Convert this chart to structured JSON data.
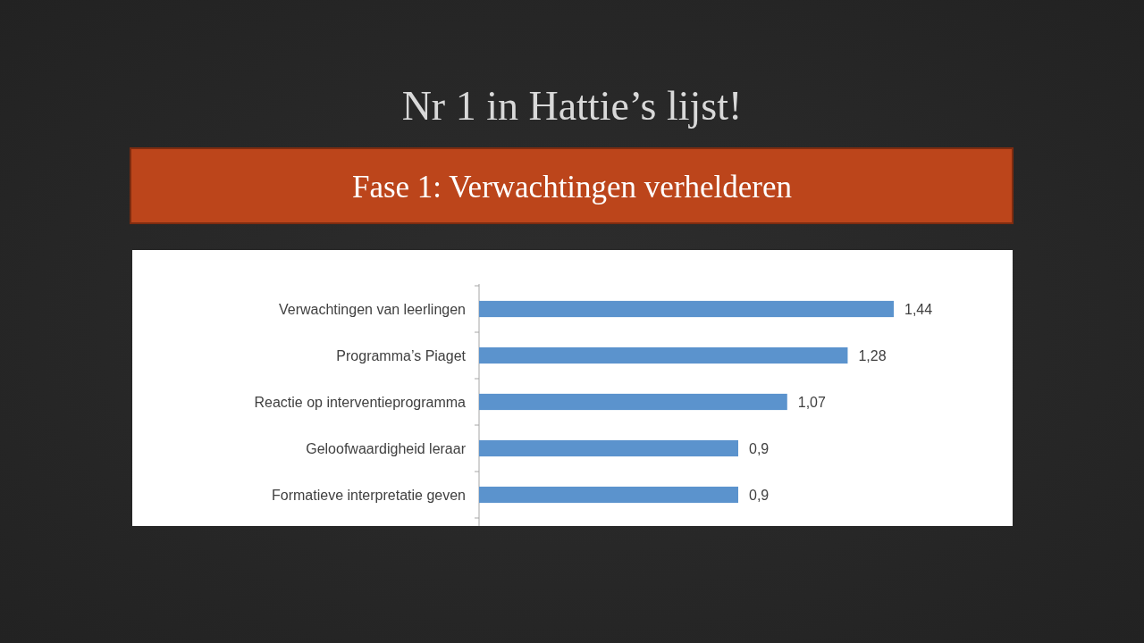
{
  "chart_data": {
    "type": "bar",
    "orientation": "horizontal",
    "title": "Nr 1 in Hattie’s lijst!",
    "subtitle": "Fase 1: Verwachtingen verhelderen",
    "categories": [
      "Verwachtingen van leerlingen",
      "Programma’s Piaget",
      "Reactie op interventieprogramma",
      "Geloofwaardigheid leraar",
      "Formatieve interpretatie geven"
    ],
    "values": [
      1.44,
      1.28,
      1.07,
      0.9,
      0.9
    ],
    "color": "#5b93cd",
    "value_labels": [
      "1,44",
      "1,28",
      "1,07",
      "0,9",
      "0,9"
    ],
    "tick_labels": "y"
  }
}
